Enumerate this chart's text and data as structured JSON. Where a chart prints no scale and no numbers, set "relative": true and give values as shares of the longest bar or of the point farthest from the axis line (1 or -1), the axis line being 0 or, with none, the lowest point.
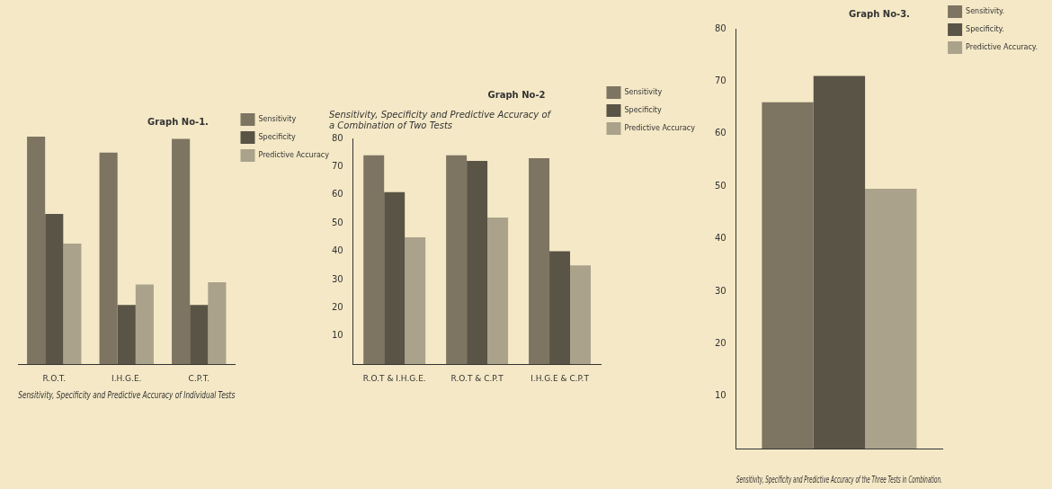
{
  "chart_data": [
    {
      "type": "bar",
      "title": "Graph No-1.",
      "xlabel": "Sensitivity, Specificity and Predictive Accuracy of Individual Tests",
      "categories": [
        "R.O.T.",
        "I.H.G.E.",
        "C.P.T."
      ],
      "relative": true,
      "legend": "top right",
      "grid": false,
      "series": [
        {
          "name": "Sensitivity",
          "color": "#7d7462",
          "values": [
            1,
            0.93,
            0.99
          ]
        },
        {
          "name": "Specificity",
          "color": "#5a5446",
          "values": [
            0.66,
            0.26,
            0.26
          ]
        },
        {
          "name": "Predictive Accuracy",
          "color": "#aaa28a",
          "values": [
            0.53,
            0.35,
            0.36
          ]
        }
      ]
    },
    {
      "type": "bar",
      "title": "Graph No-2",
      "subtitle": "Sensitivity, Specificity and Predictive Accuracy of a Combination of Two Tests",
      "categories": [
        "R.O.T & I.H.G.E.",
        "R.O.T & C.P.T",
        "I.H.G.E & C.P.T"
      ],
      "ylim": [
        0,
        80
      ],
      "yticks": [
        10,
        20,
        30,
        40,
        50,
        60,
        70,
        80
      ],
      "legend": "top right",
      "grid": false,
      "series": [
        {
          "name": "Sensitivity",
          "color": "#7d7462",
          "values": [
            74,
            74,
            73
          ]
        },
        {
          "name": "Specificity",
          "color": "#5a5446",
          "values": [
            61,
            72,
            40
          ]
        },
        {
          "name": "Predictive Accuracy",
          "color": "#aaa28a",
          "values": [
            45,
            52,
            35
          ]
        }
      ]
    },
    {
      "type": "bar",
      "title": "Graph No-3.",
      "xlabel": "Sensitivity, Specificity and Predictive Accuracy of the Three Tests in Combination.",
      "categories": [
        null
      ],
      "ylim": [
        0,
        80
      ],
      "yticks": [
        10,
        20,
        30,
        40,
        50,
        60,
        70,
        80
      ],
      "legend": "top right",
      "grid": false,
      "series": [
        {
          "name": "Sensitivity.",
          "color": "#7d7462",
          "values": [
            66
          ]
        },
        {
          "name": "Specificity.",
          "color": "#5a5446",
          "values": [
            71
          ]
        },
        {
          "name": "Predictive Accuracy.",
          "color": "#aaa28a",
          "values": [
            49.5
          ]
        }
      ]
    }
  ]
}
